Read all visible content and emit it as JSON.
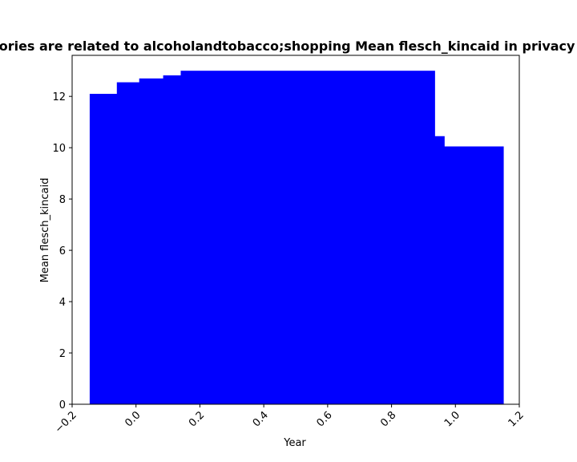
{
  "chart_data": {
    "type": "bar",
    "title": "Categories are related to alcoholandtobacco;shopping Mean flesch_kincaid in privacy policies",
    "xlabel": "Year",
    "ylabel": "Mean flesch_kincaid",
    "xlim": [
      -0.2,
      1.2
    ],
    "ylim": [
      0,
      13.6
    ],
    "xticks": [
      "−0.2",
      "0.0",
      "0.2",
      "0.4",
      "0.6",
      "0.8",
      "1.0",
      "1.2"
    ],
    "yticks": [
      "0",
      "2",
      "4",
      "6",
      "8",
      "10",
      "12"
    ],
    "bar_color": "#0000ff",
    "steps": [
      {
        "x0": -0.145,
        "x1": -0.06,
        "value": 12.1
      },
      {
        "x0": -0.06,
        "x1": 0.01,
        "value": 12.55
      },
      {
        "x0": 0.01,
        "x1": 0.085,
        "value": 12.7
      },
      {
        "x0": 0.085,
        "x1": 0.14,
        "value": 12.82
      },
      {
        "x0": 0.14,
        "x1": 0.935,
        "value": 13.0
      },
      {
        "x0": 0.935,
        "x1": 0.965,
        "value": 10.45
      },
      {
        "x0": 0.965,
        "x1": 1.15,
        "value": 10.05
      }
    ]
  }
}
